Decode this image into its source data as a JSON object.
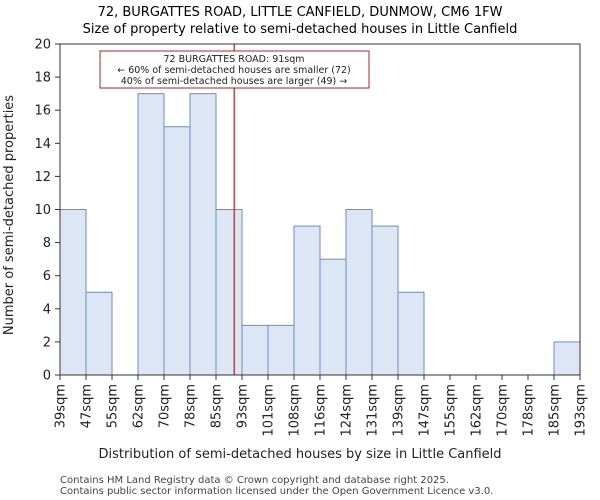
{
  "chart_data": {
    "type": "bar",
    "title": "72, BURGATTES ROAD, LITTLE CANFIELD, DUNMOW, CM6 1FW",
    "subtitle": "Size of property relative to semi-detached houses in Little Canfield",
    "xlabel": "Distribution of semi-detached houses by size in Little Canfield",
    "ylabel": "Number of semi-detached properties",
    "ylim": [
      0,
      20
    ],
    "yticks": [
      0,
      2,
      4,
      6,
      8,
      10,
      12,
      14,
      16,
      18,
      20
    ],
    "bin_edges": [
      "39sqm",
      "47sqm",
      "55sqm",
      "62sqm",
      "70sqm",
      "78sqm",
      "85sqm",
      "93sqm",
      "101sqm",
      "108sqm",
      "116sqm",
      "124sqm",
      "131sqm",
      "139sqm",
      "147sqm",
      "155sqm",
      "162sqm",
      "170sqm",
      "178sqm",
      "185sqm",
      "193sqm"
    ],
    "values": [
      10,
      5,
      0,
      17,
      15,
      17,
      10,
      3,
      3,
      9,
      7,
      10,
      9,
      5,
      0,
      0,
      0,
      0,
      0,
      2
    ],
    "marker": {
      "value_sqm": 91,
      "bin_position": 6.7
    },
    "annotation": {
      "line1": "72 BURGATTES ROAD: 91sqm",
      "line2": "← 60% of semi-detached houses are smaller (72)",
      "line3": "40% of semi-detached houses are larger (49) →"
    },
    "colors": {
      "bar_fill": "#dce6f5",
      "bar_edge": "#6c8ebf",
      "marker": "#b22222",
      "box_edge": "#b22222"
    },
    "grid": false
  },
  "footer": {
    "line1": "Contains HM Land Registry data © Crown copyright and database right 2025.",
    "line2": "Contains public sector information licensed under the Open Government Licence v3.0."
  }
}
